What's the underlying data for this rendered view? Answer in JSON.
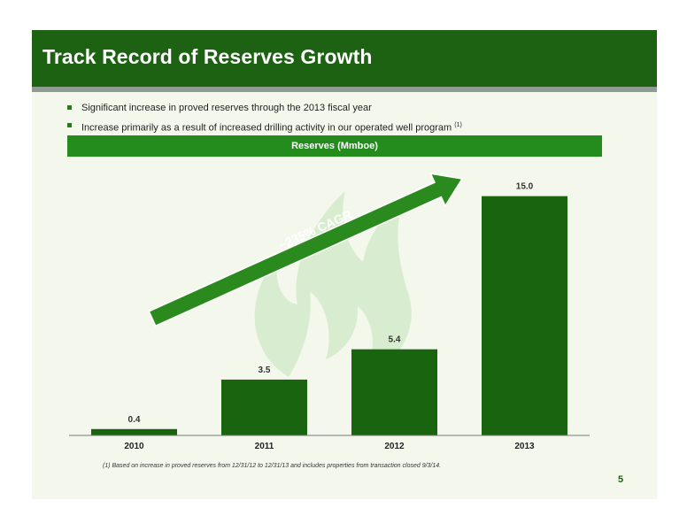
{
  "slide": {
    "title": "Track Record of Reserves Growth",
    "bullets": [
      {
        "text": "Significant increase in proved reserves through the 2013 fiscal year",
        "sup": ""
      },
      {
        "text": "Increase primarily as a result of increased drilling activity in our operated well program",
        "sup": "(1)"
      }
    ],
    "footnote": "(1) Based on increase in proved reserves from 12/31/12 to 12/31/13 and includes properties from transaction closed 9/3/14.",
    "page_number": "5"
  },
  "colors": {
    "title_bar": "#1d6212",
    "header_bar": "#238c1c",
    "bar": "#19640f",
    "arrow": "#2a8a1e",
    "background": "#f4f8ec"
  },
  "chart_data": {
    "type": "bar",
    "title": "Reserves (Mmboe)",
    "categories": [
      "2010",
      "2011",
      "2012",
      "2013"
    ],
    "values": [
      0.4,
      3.5,
      5.4,
      15.0
    ],
    "value_labels": [
      "0.4",
      "3.5",
      "5.4",
      "15.0"
    ],
    "ylim": [
      0,
      16.2
    ],
    "grid": false,
    "annotation": "~235% CAGR"
  }
}
